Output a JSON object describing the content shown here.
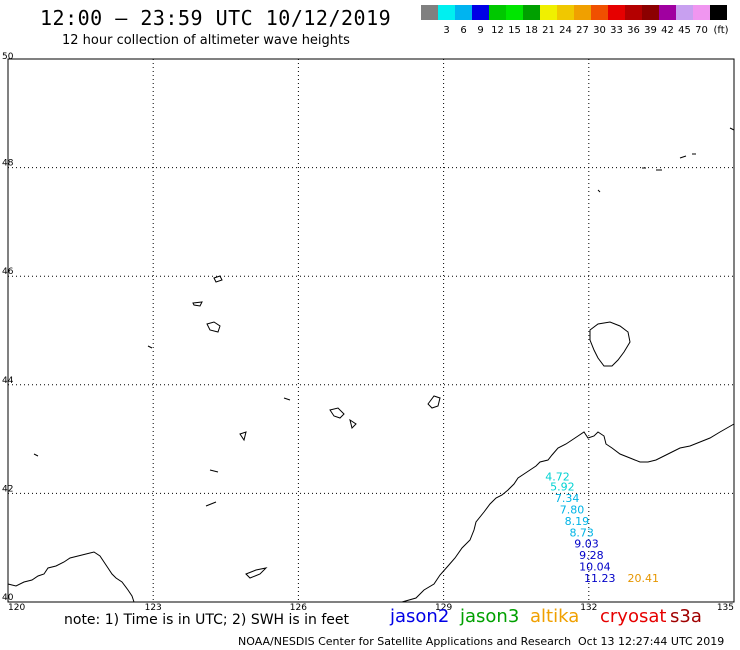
{
  "header": {
    "title": "12:00 – 23:59 UTC 10/12/2019",
    "subtitle": "12 hour collection of altimeter wave heights"
  },
  "color_scale": {
    "unit": "(ft)",
    "items": [
      {
        "label": "",
        "color": "#808080"
      },
      {
        "label": "3",
        "color": "#00f0f0"
      },
      {
        "label": "6",
        "color": "#00b4f0"
      },
      {
        "label": "9",
        "color": "#0000e6"
      },
      {
        "label": "12",
        "color": "#00c800"
      },
      {
        "label": "15",
        "color": "#00e600"
      },
      {
        "label": "18",
        "color": "#00a000"
      },
      {
        "label": "21",
        "color": "#f0f000"
      },
      {
        "label": "24",
        "color": "#f0c800"
      },
      {
        "label": "27",
        "color": "#f0a000"
      },
      {
        "label": "30",
        "color": "#f05000"
      },
      {
        "label": "33",
        "color": "#e60000"
      },
      {
        "label": "36",
        "color": "#b40000"
      },
      {
        "label": "39",
        "color": "#8c0000"
      },
      {
        "label": "42",
        "color": "#a000a0"
      },
      {
        "label": "45",
        "color": "#c8a0f0"
      },
      {
        "label": "70",
        "color": "#f096f0"
      },
      {
        "label": "",
        "color": "#000000"
      }
    ]
  },
  "map": {
    "lat_labels": [
      "50",
      "48",
      "46",
      "44",
      "42",
      "40"
    ],
    "lon_labels": [
      "120",
      "123",
      "126",
      "129",
      "132",
      "135"
    ],
    "observations": [
      {
        "value": "4.72",
        "lon": 131.1,
        "lat": 42.24,
        "color": "#00d2d2"
      },
      {
        "value": "5.92",
        "lon": 131.2,
        "lat": 42.05,
        "color": "#00d2d2"
      },
      {
        "value": "7.34",
        "lon": 131.3,
        "lat": 41.84,
        "color": "#00b4e6"
      },
      {
        "value": "7.80",
        "lon": 131.4,
        "lat": 41.63,
        "color": "#00b4e6"
      },
      {
        "value": "8.19",
        "lon": 131.5,
        "lat": 41.42,
        "color": "#00b4e6"
      },
      {
        "value": "8.73",
        "lon": 131.6,
        "lat": 41.21,
        "color": "#00b4e6"
      },
      {
        "value": "9.03",
        "lon": 131.7,
        "lat": 41.0,
        "color": "#0000c8"
      },
      {
        "value": "9.28",
        "lon": 131.8,
        "lat": 40.79,
        "color": "#0000c8"
      },
      {
        "value": "10.04",
        "lon": 131.8,
        "lat": 40.58,
        "color": "#0000c8"
      },
      {
        "value": "11.23",
        "lon": 131.9,
        "lat": 40.37,
        "color": "#0000c8"
      },
      {
        "value": "20.41",
        "lon": 132.8,
        "lat": 40.37,
        "color": "#e69600"
      }
    ]
  },
  "footer": {
    "note": "note: 1) Time is in UTC; 2) SWH is in feet",
    "satellites": [
      {
        "name": "jason2",
        "color": "#0000e6"
      },
      {
        "name": "jason3",
        "color": "#00a000"
      },
      {
        "name": "altika",
        "color": "#f0a000"
      },
      {
        "name": "cryosat",
        "color": "#e60000"
      },
      {
        "name": "s3a",
        "color": "#a00000"
      }
    ],
    "credit": "NOAA/NESDIS Center for Satellite Applications and Research",
    "timestamp": "Oct 13 12:27:44 UTC 2019"
  }
}
